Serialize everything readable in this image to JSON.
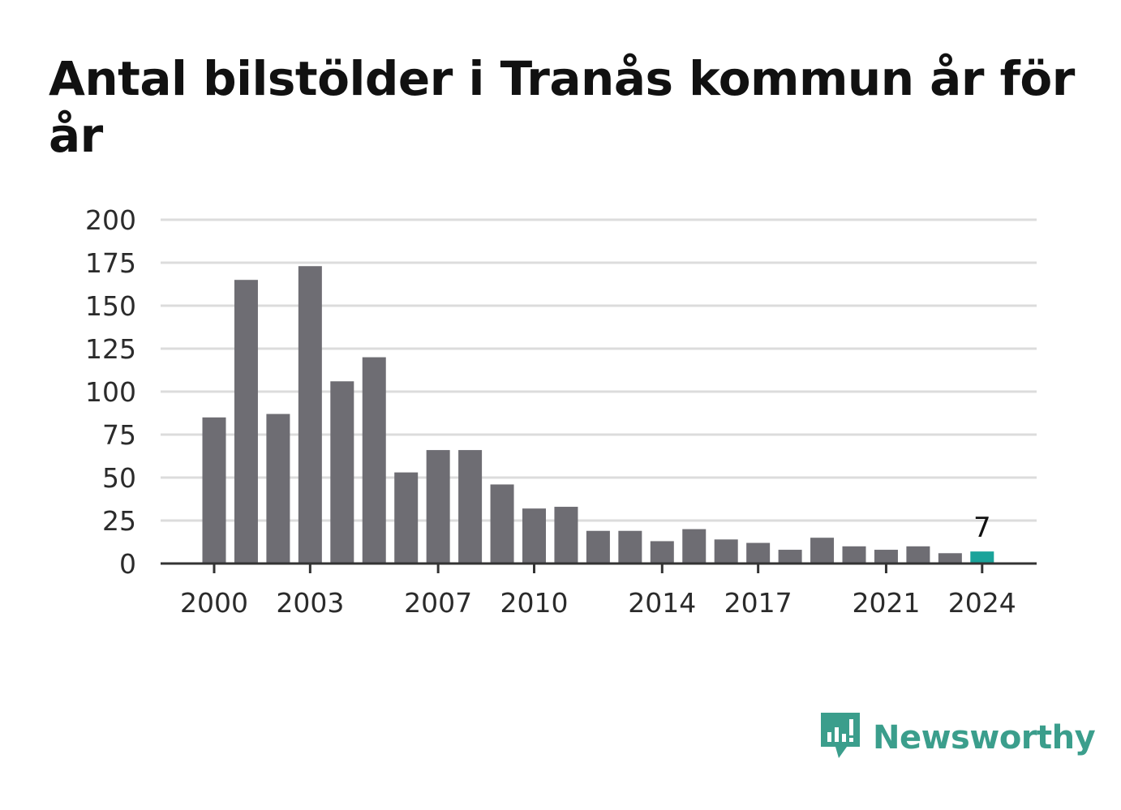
{
  "title": "Antal bilstölder i Tranås kommun år för år",
  "brand": {
    "name": "Newsworthy",
    "icon": "newsworthy-logo-icon",
    "color": "#3b9e8c"
  },
  "colors": {
    "bar": "#6e6d73",
    "highlight": "#1aa39a",
    "grid": "#dcdcdc",
    "axis": "#333333"
  },
  "chart_data": {
    "type": "bar",
    "categories": [
      "2000",
      "2001",
      "2002",
      "2003",
      "2004",
      "2005",
      "2006",
      "2007",
      "2008",
      "2009",
      "2010",
      "2011",
      "2012",
      "2013",
      "2014",
      "2015",
      "2016",
      "2017",
      "2018",
      "2019",
      "2020",
      "2021",
      "2022",
      "2023",
      "2024"
    ],
    "values": [
      85,
      165,
      87,
      173,
      106,
      120,
      53,
      66,
      66,
      46,
      32,
      33,
      19,
      19,
      13,
      20,
      14,
      12,
      8,
      15,
      10,
      8,
      10,
      6,
      7
    ],
    "x_tick_labels": [
      "2000",
      "2003",
      "2007",
      "2010",
      "2014",
      "2017",
      "2021",
      "2024"
    ],
    "y_ticks": [
      0,
      25,
      50,
      75,
      100,
      125,
      150,
      175,
      200
    ],
    "ylim": [
      0,
      200
    ],
    "highlight_category": "2024",
    "data_labels": [
      {
        "category": "2024",
        "text": "7"
      }
    ],
    "grid": true,
    "legend": false,
    "xlabel": "",
    "ylabel": ""
  }
}
